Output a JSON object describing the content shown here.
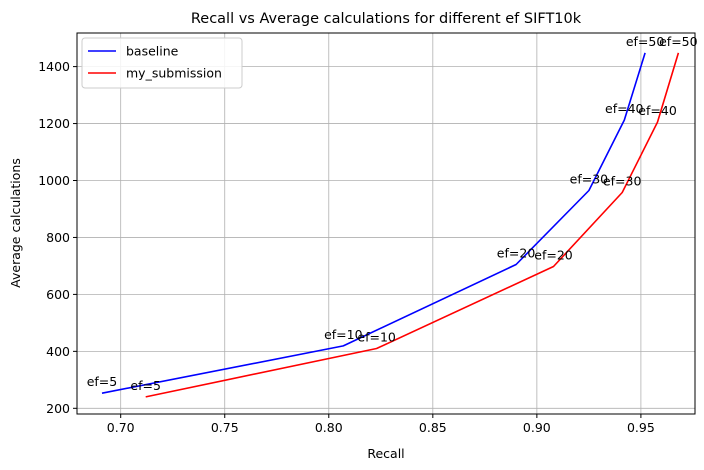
{
  "chart_data": {
    "type": "line",
    "title": "Recall vs Average calculations for different ef SIFT10k",
    "xlabel": "Recall",
    "ylabel": "Average calculations",
    "xlim": [
      0.679,
      0.976
    ],
    "ylim": [
      180,
      1518
    ],
    "xticks": [
      0.7,
      0.75,
      0.8,
      0.85,
      0.9,
      0.95
    ],
    "xtick_labels": [
      "0.70",
      "0.75",
      "0.80",
      "0.85",
      "0.90",
      "0.95"
    ],
    "yticks": [
      200,
      400,
      600,
      800,
      1000,
      1200,
      1400
    ],
    "ytick_labels": [
      "200",
      "400",
      "600",
      "800",
      "1000",
      "1200",
      "1400"
    ],
    "grid": true,
    "legend_position": "top-left",
    "series": [
      {
        "name": "baseline",
        "color": "#0000ff",
        "points": [
          {
            "label": "ef=5",
            "x": 0.691,
            "y": 253
          },
          {
            "label": "ef=10",
            "x": 0.807,
            "y": 419
          },
          {
            "label": "ef=20",
            "x": 0.89,
            "y": 705
          },
          {
            "label": "ef=30",
            "x": 0.925,
            "y": 965
          },
          {
            "label": "ef=40",
            "x": 0.942,
            "y": 1212
          },
          {
            "label": "ef=50",
            "x": 0.952,
            "y": 1448
          }
        ]
      },
      {
        "name": "my_submission",
        "color": "#ff0000",
        "points": [
          {
            "label": "ef=5",
            "x": 0.712,
            "y": 240
          },
          {
            "label": "ef=10",
            "x": 0.823,
            "y": 410
          },
          {
            "label": "ef=20",
            "x": 0.908,
            "y": 698
          },
          {
            "label": "ef=30",
            "x": 0.941,
            "y": 958
          },
          {
            "label": "ef=40",
            "x": 0.958,
            "y": 1205
          },
          {
            "label": "ef=50",
            "x": 0.968,
            "y": 1448
          }
        ]
      }
    ]
  }
}
